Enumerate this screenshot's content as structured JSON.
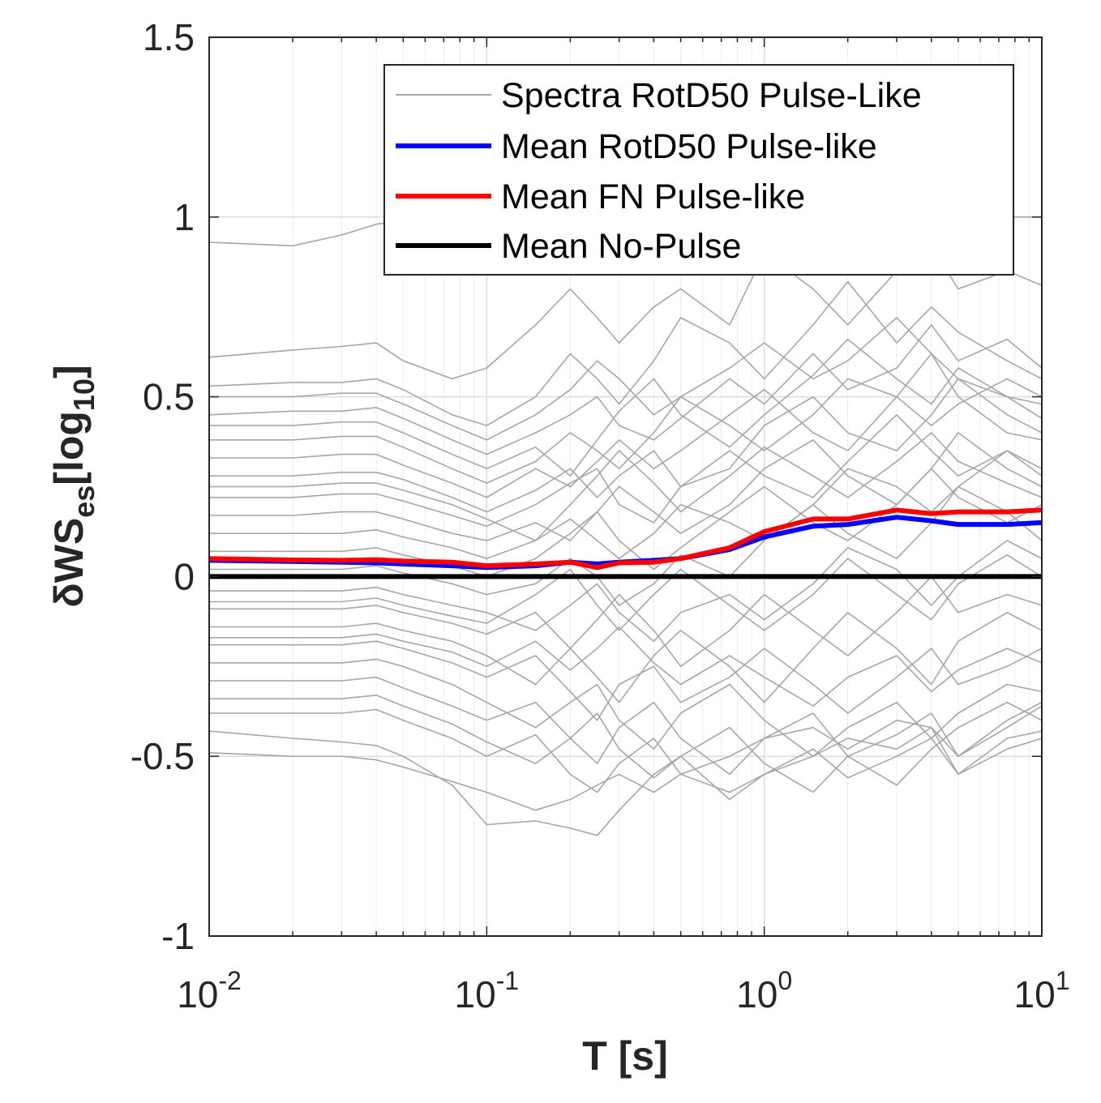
{
  "chart_data": {
    "type": "line",
    "xlabel": "T [s]",
    "ylabel": {
      "prefix": "δWS",
      "subscript": "es",
      "unit_open": "[log",
      "unit_subscript": "10",
      "unit_close": "]"
    },
    "xscale": "log",
    "xlim": [
      0.01,
      10
    ],
    "ylim": [
      -1,
      1.5
    ],
    "grid": true,
    "legend_position": "top-right",
    "x_ticks": [
      {
        "base": "10",
        "exp": "-2"
      },
      {
        "base": "10",
        "exp": "-1"
      },
      {
        "base": "10",
        "exp": "0"
      },
      {
        "base": "10",
        "exp": "1"
      }
    ],
    "y_ticks": [
      "-1",
      "-0.5",
      "0",
      "0.5",
      "1",
      "1.5"
    ],
    "periods": [
      0.01,
      0.02,
      0.03,
      0.04,
      0.05,
      0.075,
      0.1,
      0.15,
      0.2,
      0.25,
      0.3,
      0.4,
      0.5,
      0.75,
      1.0,
      1.5,
      2.0,
      3.0,
      4.0,
      5.0,
      7.5,
      10.0
    ],
    "series": [
      {
        "name": "Spectra RotD50 Pulse-Like",
        "color": "#a6a6a6",
        "note": "individual record spectra",
        "curves": [
          [
            0.93,
            0.92,
            0.95,
            0.98,
            0.99,
            1.0,
            1.0,
            1.0,
            1.0,
            1.0,
            1.0,
            1.0,
            1.0,
            1.0,
            1.0,
            1.0,
            1.0,
            1.0,
            1.0,
            1.0,
            1.0,
            1.0
          ],
          [
            0.61,
            0.63,
            0.64,
            0.65,
            0.6,
            0.55,
            0.58,
            0.7,
            0.8,
            0.72,
            0.65,
            0.75,
            0.8,
            0.7,
            0.9,
            0.8,
            0.7,
            0.85,
            0.92,
            0.8,
            0.85,
            0.81
          ],
          [
            -0.43,
            -0.45,
            -0.46,
            -0.47,
            -0.5,
            -0.58,
            -0.69,
            -0.68,
            -0.7,
            -0.72,
            -0.65,
            -0.55,
            -0.5,
            -0.62,
            -0.55,
            -0.5,
            -0.45,
            -0.48,
            -0.42,
            -0.5,
            -0.4,
            -0.35
          ],
          [
            -0.49,
            -0.5,
            -0.5,
            -0.51,
            -0.53,
            -0.57,
            -0.6,
            -0.65,
            -0.62,
            -0.58,
            -0.55,
            -0.6,
            -0.55,
            -0.5,
            -0.45,
            -0.42,
            -0.48,
            -0.4,
            -0.42,
            -0.55,
            -0.45,
            -0.43
          ],
          [
            0.53,
            0.54,
            0.54,
            0.55,
            0.52,
            0.45,
            0.42,
            0.5,
            0.62,
            0.55,
            0.48,
            0.6,
            0.72,
            0.65,
            0.55,
            0.7,
            0.82,
            0.65,
            0.75,
            0.68,
            0.6,
            0.55
          ],
          [
            0.5,
            0.5,
            0.51,
            0.51,
            0.48,
            0.42,
            0.38,
            0.45,
            0.52,
            0.6,
            0.55,
            0.45,
            0.5,
            0.58,
            0.65,
            0.55,
            0.6,
            0.72,
            0.62,
            0.55,
            0.5,
            0.48
          ],
          [
            0.45,
            0.46,
            0.46,
            0.47,
            0.44,
            0.38,
            0.34,
            0.4,
            0.45,
            0.5,
            0.42,
            0.38,
            0.44,
            0.55,
            0.48,
            0.62,
            0.52,
            0.58,
            0.7,
            0.6,
            0.66,
            0.58
          ],
          [
            0.38,
            0.38,
            0.39,
            0.39,
            0.36,
            0.3,
            0.26,
            0.32,
            0.4,
            0.35,
            0.3,
            0.4,
            0.5,
            0.42,
            0.35,
            0.45,
            0.55,
            0.5,
            0.42,
            0.48,
            0.55,
            0.5
          ],
          [
            0.33,
            0.33,
            0.34,
            0.34,
            0.31,
            0.26,
            0.22,
            0.3,
            0.25,
            0.32,
            0.38,
            0.3,
            0.35,
            0.45,
            0.52,
            0.4,
            0.35,
            0.5,
            0.62,
            0.5,
            0.4,
            0.38
          ],
          [
            0.28,
            0.28,
            0.29,
            0.29,
            0.27,
            0.22,
            0.18,
            0.24,
            0.3,
            0.22,
            0.28,
            0.35,
            0.25,
            0.3,
            0.42,
            0.5,
            0.4,
            0.35,
            0.45,
            0.55,
            0.45,
            0.4
          ],
          [
            0.22,
            0.22,
            0.23,
            0.23,
            0.21,
            0.17,
            0.14,
            0.2,
            0.26,
            0.3,
            0.2,
            0.15,
            0.25,
            0.35,
            0.28,
            0.22,
            0.32,
            0.45,
            0.35,
            0.28,
            0.35,
            0.3
          ],
          [
            0.17,
            0.17,
            0.18,
            0.18,
            0.16,
            0.12,
            0.1,
            0.15,
            0.1,
            0.18,
            0.25,
            0.18,
            0.12,
            0.2,
            0.3,
            0.38,
            0.28,
            0.2,
            0.3,
            0.4,
            0.3,
            0.25
          ],
          [
            0.12,
            0.12,
            0.12,
            0.13,
            0.11,
            0.08,
            0.05,
            0.1,
            0.16,
            0.1,
            0.05,
            0.12,
            0.2,
            0.15,
            0.1,
            0.2,
            0.3,
            0.25,
            0.18,
            0.25,
            0.35,
            0.28
          ],
          [
            0.07,
            0.07,
            0.07,
            0.08,
            0.06,
            0.03,
            0.0,
            0.05,
            0.12,
            0.18,
            0.1,
            0.02,
            0.08,
            0.18,
            0.25,
            0.15,
            0.1,
            0.2,
            0.3,
            0.22,
            0.15,
            0.2
          ],
          [
            0.02,
            0.02,
            0.02,
            0.03,
            0.01,
            -0.02,
            -0.05,
            -0.02,
            0.05,
            0.0,
            -0.08,
            -0.02,
            0.06,
            0.0,
            0.1,
            0.2,
            0.12,
            0.05,
            0.15,
            0.25,
            0.18,
            0.1
          ],
          [
            -0.04,
            -0.04,
            -0.04,
            -0.03,
            -0.05,
            -0.08,
            -0.1,
            -0.15,
            -0.08,
            -0.02,
            -0.1,
            -0.18,
            -0.1,
            -0.05,
            -0.12,
            -0.02,
            0.08,
            0.02,
            -0.08,
            0.0,
            0.1,
            0.05
          ],
          [
            -0.09,
            -0.09,
            -0.09,
            -0.08,
            -0.1,
            -0.13,
            -0.16,
            -0.1,
            -0.2,
            -0.12,
            -0.05,
            -0.15,
            -0.25,
            -0.15,
            -0.05,
            -0.15,
            -0.22,
            -0.1,
            0.0,
            -0.1,
            -0.05,
            -0.08
          ],
          [
            -0.14,
            -0.14,
            -0.14,
            -0.13,
            -0.15,
            -0.18,
            -0.22,
            -0.3,
            -0.2,
            -0.28,
            -0.35,
            -0.22,
            -0.15,
            -0.25,
            -0.35,
            -0.2,
            -0.1,
            -0.2,
            -0.3,
            -0.18,
            -0.1,
            -0.15
          ],
          [
            -0.19,
            -0.19,
            -0.19,
            -0.18,
            -0.2,
            -0.24,
            -0.28,
            -0.22,
            -0.32,
            -0.4,
            -0.3,
            -0.25,
            -0.35,
            -0.28,
            -0.2,
            -0.3,
            -0.38,
            -0.28,
            -0.2,
            -0.3,
            -0.25,
            -0.2
          ],
          [
            -0.24,
            -0.24,
            -0.24,
            -0.23,
            -0.25,
            -0.3,
            -0.35,
            -0.42,
            -0.35,
            -0.3,
            -0.4,
            -0.48,
            -0.38,
            -0.3,
            -0.4,
            -0.5,
            -0.42,
            -0.35,
            -0.45,
            -0.38,
            -0.3,
            -0.32
          ],
          [
            -0.29,
            -0.29,
            -0.29,
            -0.28,
            -0.31,
            -0.36,
            -0.4,
            -0.35,
            -0.45,
            -0.52,
            -0.42,
            -0.35,
            -0.45,
            -0.55,
            -0.45,
            -0.38,
            -0.5,
            -0.58,
            -0.48,
            -0.42,
            -0.35,
            -0.4
          ],
          [
            -0.34,
            -0.34,
            -0.34,
            -0.33,
            -0.36,
            -0.41,
            -0.46,
            -0.52,
            -0.45,
            -0.38,
            -0.48,
            -0.56,
            -0.5,
            -0.42,
            -0.52,
            -0.6,
            -0.5,
            -0.44,
            -0.38,
            -0.5,
            -0.42,
            -0.36
          ],
          [
            -0.38,
            -0.38,
            -0.38,
            -0.37,
            -0.4,
            -0.45,
            -0.5,
            -0.44,
            -0.55,
            -0.6,
            -0.52,
            -0.45,
            -0.55,
            -0.6,
            -0.55,
            -0.48,
            -0.56,
            -0.5,
            -0.45,
            -0.55,
            -0.48,
            -0.45
          ],
          [
            0.42,
            0.42,
            0.43,
            0.43,
            0.4,
            0.34,
            0.3,
            0.36,
            0.28,
            0.38,
            0.46,
            0.55,
            0.45,
            0.36,
            0.45,
            0.56,
            0.66,
            0.55,
            0.48,
            0.58,
            0.5,
            0.44
          ],
          [
            0.25,
            0.25,
            0.26,
            0.26,
            0.24,
            0.2,
            0.16,
            0.1,
            0.2,
            0.28,
            0.35,
            0.26,
            0.18,
            0.28,
            0.36,
            0.28,
            0.22,
            0.32,
            0.4,
            0.32,
            0.26,
            0.22
          ],
          [
            -0.07,
            -0.07,
            -0.07,
            -0.06,
            -0.08,
            -0.11,
            -0.13,
            -0.05,
            0.02,
            -0.08,
            -0.15,
            -0.05,
            0.02,
            -0.08,
            -0.15,
            -0.05,
            0.05,
            -0.05,
            -0.12,
            -0.02,
            0.06,
            0.0
          ],
          [
            -0.17,
            -0.17,
            -0.17,
            -0.16,
            -0.18,
            -0.21,
            -0.25,
            -0.18,
            -0.26,
            -0.2,
            -0.14,
            -0.24,
            -0.3,
            -0.22,
            -0.28,
            -0.36,
            -0.28,
            -0.22,
            -0.32,
            -0.26,
            -0.2,
            -0.24
          ]
        ]
      },
      {
        "name": "Mean RotD50 Pulse-like",
        "color": "#0000ff",
        "values": [
          0.045,
          0.042,
          0.04,
          0.038,
          0.035,
          0.03,
          0.025,
          0.03,
          0.04,
          0.035,
          0.04,
          0.045,
          0.05,
          0.075,
          0.11,
          0.14,
          0.145,
          0.165,
          0.155,
          0.145,
          0.145,
          0.15
        ]
      },
      {
        "name": "Mean FN Pulse-like",
        "color": "#ff0000",
        "values": [
          0.05,
          0.046,
          0.045,
          0.047,
          0.043,
          0.04,
          0.03,
          0.035,
          0.04,
          0.025,
          0.038,
          0.04,
          0.05,
          0.08,
          0.125,
          0.16,
          0.16,
          0.185,
          0.175,
          0.18,
          0.18,
          0.185
        ]
      },
      {
        "name": "Mean No-Pulse",
        "color": "#000000",
        "values": [
          0,
          0,
          0,
          0,
          0,
          0,
          0,
          0,
          0,
          0,
          0,
          0,
          0,
          0,
          0,
          0,
          0,
          0,
          0,
          0,
          0,
          0
        ]
      }
    ]
  }
}
